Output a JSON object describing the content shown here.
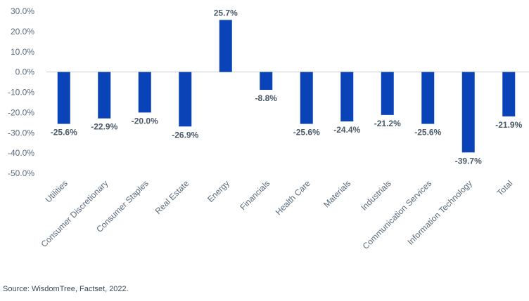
{
  "chart_data": {
    "type": "bar",
    "categories": [
      "Utilities",
      "Consumer Discretionary",
      "Consumer Staples",
      "Real Estate",
      "Energy",
      "Financials",
      "Health Care",
      "Materials",
      "Industrials",
      "Communication Services",
      "Information Technology",
      "Total"
    ],
    "values": [
      -25.6,
      -22.9,
      -20.0,
      -26.9,
      25.7,
      -8.8,
      -25.6,
      -24.4,
      -21.2,
      -25.6,
      -39.7,
      -21.9
    ],
    "data_labels": [
      "-25.6%",
      "-22.9%",
      "-20.0%",
      "-26.9%",
      "25.7%",
      "-8.8%",
      "-25.6%",
      "-24.4%",
      "-21.2%",
      "-25.6%",
      "-39.7%",
      "-21.9%"
    ],
    "y_ticks": [
      30,
      20,
      10,
      0,
      -10,
      -20,
      -30,
      -40,
      -50
    ],
    "y_tick_labels": [
      "30.0%",
      "20.0%",
      "10.0%",
      "0.0%",
      "-10.0%",
      "-20.0%",
      "-30.0%",
      "-40.0%",
      "-50.0%"
    ],
    "ylim": [
      -50,
      30
    ],
    "grid": false,
    "bar_color": "#0a43b8",
    "xlabel": "",
    "ylabel": ""
  },
  "source": "Source: WisdomTree, Factset, 2022."
}
